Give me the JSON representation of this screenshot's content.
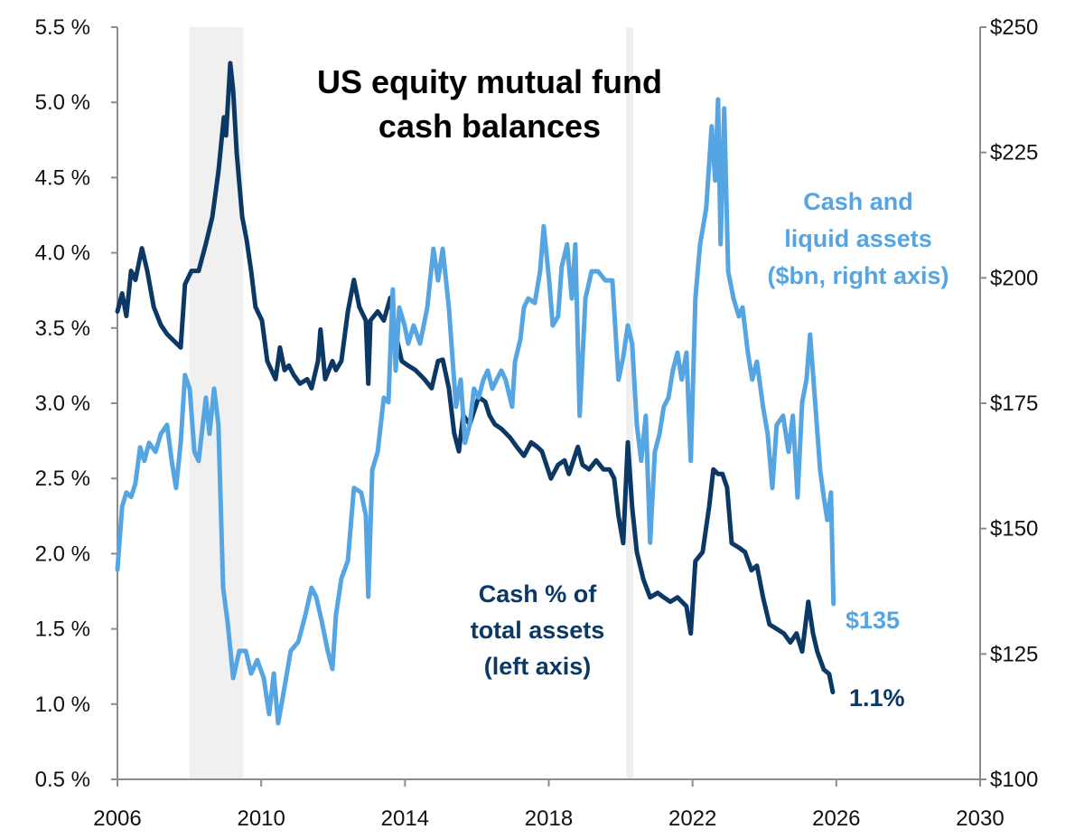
{
  "chart_data": {
    "type": "line",
    "title": [
      "US equity mutual fund",
      "cash balances"
    ],
    "x_ticks": [
      "2006",
      "2010",
      "2014",
      "2018",
      "2022",
      "2026",
      "2030"
    ],
    "xlim": [
      2006,
      2030
    ],
    "left_axis": {
      "ylim": [
        0.5,
        5.5
      ],
      "ticks": [
        "0.5 %",
        "1.0 %",
        "1.5 %",
        "2.0 %",
        "2.5 %",
        "3.0 %",
        "3.5 %",
        "4.0 %",
        "4.5 %",
        "5.0 %",
        "5.5 %"
      ]
    },
    "right_axis": {
      "ylim": [
        100,
        250
      ],
      "ticks": [
        "$100",
        "$125",
        "$150",
        "$175",
        "$200",
        "$225",
        "$250"
      ]
    },
    "grid": false,
    "shaded_periods": [
      [
        2008.0,
        2009.5
      ],
      [
        2020.15,
        2020.35
      ]
    ],
    "colors": {
      "cash_pct": "#0c3866",
      "cash_assets": "#55a5e2",
      "shading": "#f0f0f0",
      "axis": "#8c8c8c"
    },
    "series": [
      {
        "name": [
          "Cash % of",
          "total assets",
          "(left axis)"
        ],
        "axis": "left",
        "end_label": "1.1%",
        "points": [
          [
            2006.0,
            3.61
          ],
          [
            2006.13,
            3.73
          ],
          [
            2006.25,
            3.58
          ],
          [
            2006.38,
            3.88
          ],
          [
            2006.5,
            3.82
          ],
          [
            2006.68,
            4.03
          ],
          [
            2006.83,
            3.88
          ],
          [
            2007.01,
            3.64
          ],
          [
            2007.21,
            3.52
          ],
          [
            2007.38,
            3.46
          ],
          [
            2007.63,
            3.4
          ],
          [
            2007.76,
            3.37
          ],
          [
            2007.88,
            3.79
          ],
          [
            2008.06,
            3.88
          ],
          [
            2008.26,
            3.88
          ],
          [
            2008.46,
            4.06
          ],
          [
            2008.64,
            4.24
          ],
          [
            2008.81,
            4.54
          ],
          [
            2008.96,
            4.9
          ],
          [
            2009.02,
            4.78
          ],
          [
            2009.14,
            5.26
          ],
          [
            2009.22,
            5.08
          ],
          [
            2009.32,
            4.66
          ],
          [
            2009.47,
            4.24
          ],
          [
            2009.59,
            4.09
          ],
          [
            2009.72,
            3.88
          ],
          [
            2009.84,
            3.64
          ],
          [
            2010.02,
            3.55
          ],
          [
            2010.17,
            3.28
          ],
          [
            2010.4,
            3.16
          ],
          [
            2010.52,
            3.37
          ],
          [
            2010.65,
            3.22
          ],
          [
            2010.77,
            3.25
          ],
          [
            2010.9,
            3.19
          ],
          [
            2011.08,
            3.13
          ],
          [
            2011.28,
            3.16
          ],
          [
            2011.4,
            3.1
          ],
          [
            2011.58,
            3.28
          ],
          [
            2011.65,
            3.49
          ],
          [
            2011.78,
            3.16
          ],
          [
            2011.98,
            3.28
          ],
          [
            2012.08,
            3.22
          ],
          [
            2012.23,
            3.28
          ],
          [
            2012.41,
            3.61
          ],
          [
            2012.58,
            3.82
          ],
          [
            2012.73,
            3.64
          ],
          [
            2012.91,
            3.55
          ],
          [
            2012.98,
            3.13
          ],
          [
            2013.04,
            3.55
          ],
          [
            2013.24,
            3.61
          ],
          [
            2013.41,
            3.55
          ],
          [
            2013.59,
            3.7
          ],
          [
            2013.74,
            3.46
          ],
          [
            2013.91,
            3.28
          ],
          [
            2014.09,
            3.25
          ],
          [
            2014.29,
            3.22
          ],
          [
            2014.54,
            3.16
          ],
          [
            2014.74,
            3.1
          ],
          [
            2014.92,
            3.28
          ],
          [
            2015.05,
            3.29
          ],
          [
            2015.22,
            3.1
          ],
          [
            2015.37,
            2.8
          ],
          [
            2015.5,
            2.68
          ],
          [
            2015.62,
            2.92
          ],
          [
            2015.8,
            2.86
          ],
          [
            2016.05,
            3.04
          ],
          [
            2016.23,
            3.01
          ],
          [
            2016.35,
            2.92
          ],
          [
            2016.5,
            2.86
          ],
          [
            2016.68,
            2.83
          ],
          [
            2016.93,
            2.77
          ],
          [
            2017.11,
            2.71
          ],
          [
            2017.31,
            2.65
          ],
          [
            2017.51,
            2.74
          ],
          [
            2017.68,
            2.71
          ],
          [
            2017.81,
            2.68
          ],
          [
            2018.06,
            2.5
          ],
          [
            2018.26,
            2.59
          ],
          [
            2018.44,
            2.62
          ],
          [
            2018.56,
            2.53
          ],
          [
            2018.81,
            2.71
          ],
          [
            2018.94,
            2.59
          ],
          [
            2019.12,
            2.56
          ],
          [
            2019.32,
            2.62
          ],
          [
            2019.52,
            2.56
          ],
          [
            2019.69,
            2.56
          ],
          [
            2019.82,
            2.5
          ],
          [
            2019.94,
            2.25
          ],
          [
            2020.07,
            2.07
          ],
          [
            2020.2,
            2.74
          ],
          [
            2020.32,
            2.31
          ],
          [
            2020.45,
            2.01
          ],
          [
            2020.63,
            1.83
          ],
          [
            2020.82,
            1.71
          ],
          [
            2021.03,
            1.74
          ],
          [
            2021.2,
            1.71
          ],
          [
            2021.38,
            1.68
          ],
          [
            2021.58,
            1.71
          ],
          [
            2021.83,
            1.65
          ],
          [
            2021.95,
            1.47
          ],
          [
            2022.08,
            1.95
          ],
          [
            2022.28,
            2.01
          ],
          [
            2022.46,
            2.31
          ],
          [
            2022.58,
            2.56
          ],
          [
            2022.71,
            2.53
          ],
          [
            2022.83,
            2.53
          ],
          [
            2022.96,
            2.44
          ],
          [
            2023.09,
            2.07
          ],
          [
            2023.29,
            2.04
          ],
          [
            2023.46,
            2.01
          ],
          [
            2023.64,
            1.89
          ],
          [
            2023.79,
            1.92
          ],
          [
            2023.96,
            1.71
          ],
          [
            2024.14,
            1.53
          ],
          [
            2024.34,
            1.5
          ],
          [
            2024.54,
            1.47
          ],
          [
            2024.72,
            1.41
          ],
          [
            2024.89,
            1.47
          ],
          [
            2025.05,
            1.35
          ],
          [
            2025.22,
            1.68
          ],
          [
            2025.35,
            1.47
          ],
          [
            2025.47,
            1.35
          ],
          [
            2025.65,
            1.23
          ],
          [
            2025.8,
            1.2
          ],
          [
            2025.9,
            1.08
          ]
        ]
      },
      {
        "name": [
          "Cash and",
          "liquid assets",
          "($bn, right axis)"
        ],
        "axis": "right",
        "end_label": "$135",
        "points": [
          [
            2006.0,
            141.8
          ],
          [
            2006.13,
            154.4
          ],
          [
            2006.25,
            157.2
          ],
          [
            2006.38,
            156.3
          ],
          [
            2006.5,
            159.0
          ],
          [
            2006.63,
            166.2
          ],
          [
            2006.75,
            163.5
          ],
          [
            2006.88,
            167.1
          ],
          [
            2007.06,
            165.3
          ],
          [
            2007.21,
            168.9
          ],
          [
            2007.38,
            170.7
          ],
          [
            2007.51,
            163.5
          ],
          [
            2007.63,
            158.1
          ],
          [
            2007.76,
            167.1
          ],
          [
            2007.88,
            180.6
          ],
          [
            2008.01,
            177.9
          ],
          [
            2008.14,
            165.3
          ],
          [
            2008.26,
            163.5
          ],
          [
            2008.46,
            176.1
          ],
          [
            2008.56,
            168.9
          ],
          [
            2008.69,
            177.9
          ],
          [
            2008.81,
            170.7
          ],
          [
            2008.94,
            138.2
          ],
          [
            2009.07,
            131.0
          ],
          [
            2009.22,
            120.2
          ],
          [
            2009.39,
            125.6
          ],
          [
            2009.57,
            125.6
          ],
          [
            2009.72,
            121.1
          ],
          [
            2009.89,
            123.8
          ],
          [
            2010.07,
            120.2
          ],
          [
            2010.22,
            113.0
          ],
          [
            2010.35,
            121.1
          ],
          [
            2010.47,
            111.2
          ],
          [
            2010.65,
            118.4
          ],
          [
            2010.82,
            125.6
          ],
          [
            2011.03,
            127.4
          ],
          [
            2011.23,
            132.8
          ],
          [
            2011.4,
            138.2
          ],
          [
            2011.53,
            136.4
          ],
          [
            2011.7,
            131.0
          ],
          [
            2011.85,
            125.6
          ],
          [
            2011.98,
            122.0
          ],
          [
            2012.08,
            132.8
          ],
          [
            2012.23,
            140.0
          ],
          [
            2012.41,
            143.6
          ],
          [
            2012.58,
            158.1
          ],
          [
            2012.78,
            157.2
          ],
          [
            2012.91,
            152.6
          ],
          [
            2012.98,
            136.4
          ],
          [
            2013.09,
            161.7
          ],
          [
            2013.24,
            165.3
          ],
          [
            2013.41,
            176.1
          ],
          [
            2013.54,
            175.2
          ],
          [
            2013.66,
            197.7
          ],
          [
            2013.74,
            181.5
          ],
          [
            2013.84,
            194.1
          ],
          [
            2013.99,
            190.5
          ],
          [
            2014.09,
            186.9
          ],
          [
            2014.24,
            190.5
          ],
          [
            2014.42,
            186.9
          ],
          [
            2014.62,
            194.1
          ],
          [
            2014.79,
            205.8
          ],
          [
            2014.92,
            199.5
          ],
          [
            2015.05,
            205.8
          ],
          [
            2015.22,
            194.1
          ],
          [
            2015.42,
            174.3
          ],
          [
            2015.55,
            179.7
          ],
          [
            2015.67,
            167.1
          ],
          [
            2015.8,
            170.7
          ],
          [
            2015.92,
            177.9
          ],
          [
            2016.05,
            176.1
          ],
          [
            2016.18,
            179.7
          ],
          [
            2016.3,
            181.5
          ],
          [
            2016.43,
            177.9
          ],
          [
            2016.55,
            179.7
          ],
          [
            2016.68,
            181.5
          ],
          [
            2016.8,
            179.7
          ],
          [
            2016.98,
            174.3
          ],
          [
            2017.06,
            183.3
          ],
          [
            2017.21,
            187.8
          ],
          [
            2017.31,
            194.1
          ],
          [
            2017.43,
            195.9
          ],
          [
            2017.61,
            195.0
          ],
          [
            2017.76,
            201.3
          ],
          [
            2017.86,
            210.3
          ],
          [
            2018.01,
            199.5
          ],
          [
            2018.11,
            190.5
          ],
          [
            2018.26,
            192.3
          ],
          [
            2018.36,
            202.2
          ],
          [
            2018.51,
            206.7
          ],
          [
            2018.64,
            195.9
          ],
          [
            2018.74,
            206.7
          ],
          [
            2018.86,
            172.5
          ],
          [
            2019.02,
            195.9
          ],
          [
            2019.19,
            201.3
          ],
          [
            2019.37,
            201.3
          ],
          [
            2019.57,
            199.5
          ],
          [
            2019.77,
            199.5
          ],
          [
            2019.94,
            179.7
          ],
          [
            2020.07,
            184.2
          ],
          [
            2020.2,
            190.5
          ],
          [
            2020.32,
            186.9
          ],
          [
            2020.45,
            170.7
          ],
          [
            2020.57,
            163.5
          ],
          [
            2020.7,
            172.5
          ],
          [
            2020.82,
            147.2
          ],
          [
            2020.95,
            165.3
          ],
          [
            2021.08,
            168.9
          ],
          [
            2021.2,
            174.3
          ],
          [
            2021.33,
            176.1
          ],
          [
            2021.45,
            181.5
          ],
          [
            2021.58,
            185.1
          ],
          [
            2021.7,
            179.7
          ],
          [
            2021.83,
            185.1
          ],
          [
            2021.95,
            163.5
          ],
          [
            2022.08,
            195.9
          ],
          [
            2022.21,
            206.7
          ],
          [
            2022.38,
            213.9
          ],
          [
            2022.53,
            230.2
          ],
          [
            2022.63,
            219.4
          ],
          [
            2022.71,
            235.6
          ],
          [
            2022.78,
            206.7
          ],
          [
            2022.88,
            233.8
          ],
          [
            2022.99,
            201.3
          ],
          [
            2023.14,
            195.9
          ],
          [
            2023.29,
            192.3
          ],
          [
            2023.39,
            194.1
          ],
          [
            2023.54,
            185.1
          ],
          [
            2023.66,
            179.7
          ],
          [
            2023.79,
            183.3
          ],
          [
            2023.96,
            174.3
          ],
          [
            2024.09,
            168.9
          ],
          [
            2024.22,
            158.1
          ],
          [
            2024.34,
            170.7
          ],
          [
            2024.52,
            172.5
          ],
          [
            2024.67,
            165.3
          ],
          [
            2024.79,
            172.5
          ],
          [
            2024.92,
            156.2
          ],
          [
            2025.05,
            175.2
          ],
          [
            2025.17,
            179.7
          ],
          [
            2025.27,
            188.7
          ],
          [
            2025.4,
            176.1
          ],
          [
            2025.55,
            161.7
          ],
          [
            2025.65,
            156.3
          ],
          [
            2025.75,
            151.7
          ],
          [
            2025.85,
            157.2
          ],
          [
            2025.92,
            135.0
          ]
        ]
      }
    ]
  }
}
